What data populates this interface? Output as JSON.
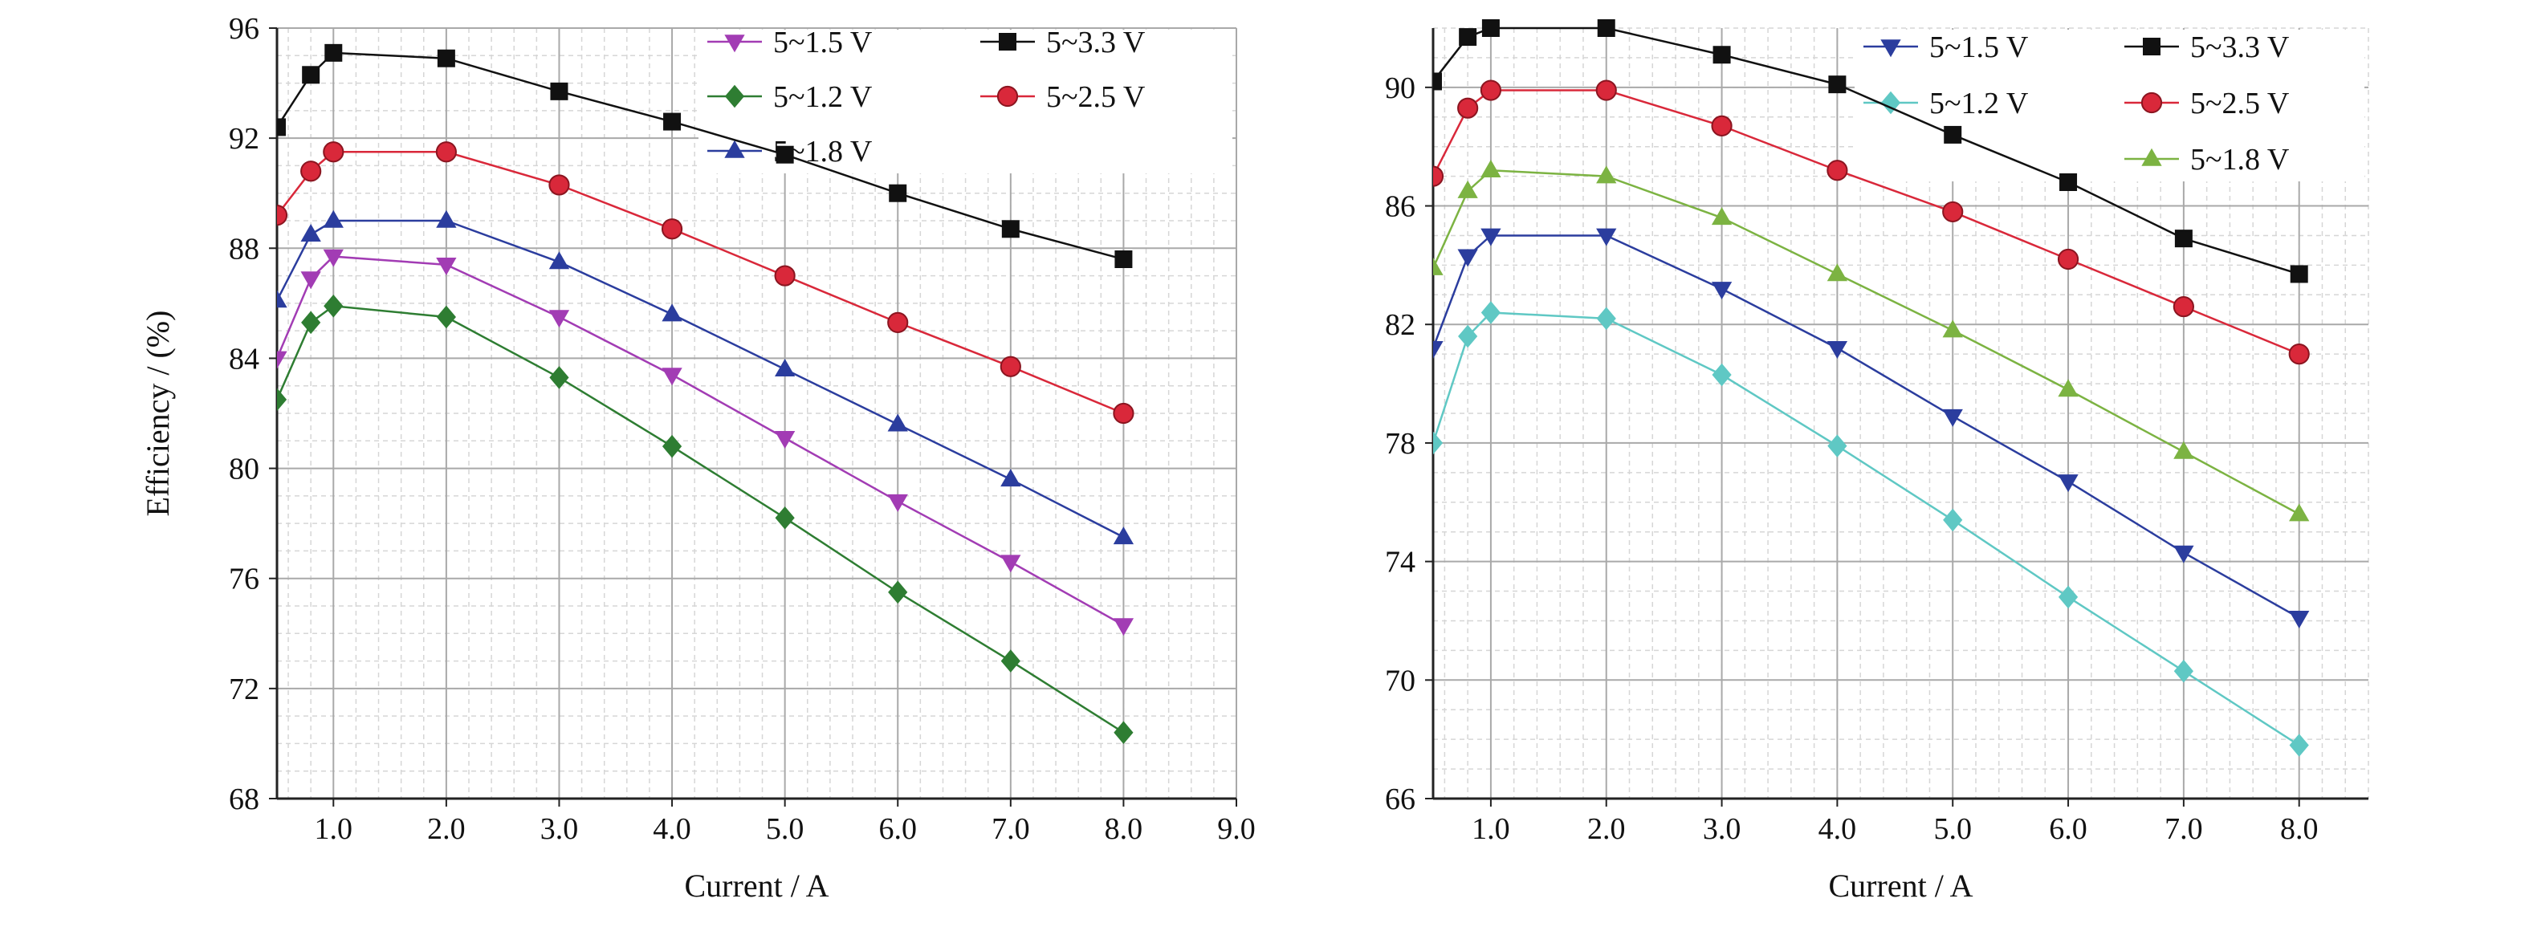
{
  "chart_data": [
    {
      "type": "line",
      "xlabel": "Current / A",
      "ylabel": "Efficiency / (%)",
      "xlim": [
        0.5,
        9.0
      ],
      "ylim": [
        68,
        96
      ],
      "x_ticks": [
        "1.0",
        "2.0",
        "3.0",
        "4.0",
        "5.0",
        "6.0",
        "7.0",
        "8.0",
        "9.0"
      ],
      "y_ticks": [
        "68",
        "72",
        "76",
        "80",
        "84",
        "88",
        "92",
        "96"
      ],
      "grid": true,
      "legend_position": "top-right",
      "series": [
        {
          "name": "5~1.5 V",
          "color": "#a23cb4",
          "marker": "triangle-down",
          "x": [
            0.5,
            0.8,
            1.0,
            2.0,
            3.0,
            4.0,
            5.0,
            6.0,
            7.0,
            8.0
          ],
          "values": [
            84.0,
            86.9,
            87.7,
            87.4,
            85.5,
            83.4,
            81.1,
            78.8,
            76.6,
            74.3
          ]
        },
        {
          "name": "5~3.3 V",
          "color": "#111111",
          "marker": "square",
          "x": [
            0.5,
            0.8,
            1.0,
            2.0,
            3.0,
            4.0,
            5.0,
            6.0,
            7.0,
            8.0
          ],
          "values": [
            92.4,
            94.3,
            95.1,
            94.9,
            93.7,
            92.6,
            91.4,
            90.0,
            88.7,
            87.6
          ]
        },
        {
          "name": "5~1.2 V",
          "color": "#2e7d32",
          "marker": "diamond",
          "x": [
            0.5,
            0.8,
            1.0,
            2.0,
            3.0,
            4.0,
            5.0,
            6.0,
            7.0,
            8.0
          ],
          "values": [
            82.5,
            85.3,
            85.9,
            85.5,
            83.3,
            80.8,
            78.2,
            75.5,
            73.0,
            70.4
          ]
        },
        {
          "name": "5~2.5 V",
          "color": "#d9283a",
          "marker": "circle",
          "x": [
            0.5,
            0.8,
            1.0,
            2.0,
            3.0,
            4.0,
            5.0,
            6.0,
            7.0,
            8.0
          ],
          "values": [
            89.2,
            90.8,
            91.5,
            91.5,
            90.3,
            88.7,
            87.0,
            85.3,
            83.7,
            82.0
          ]
        },
        {
          "name": "5~1.8 V",
          "color": "#2b3d9e",
          "marker": "triangle-up",
          "x": [
            0.5,
            0.8,
            1.0,
            2.0,
            3.0,
            4.0,
            5.0,
            6.0,
            7.0,
            8.0
          ],
          "values": [
            86.1,
            88.5,
            89.0,
            89.0,
            87.5,
            85.6,
            83.6,
            81.6,
            79.6,
            77.5
          ]
        }
      ]
    },
    {
      "type": "line",
      "xlabel": "Current / A",
      "ylabel": "",
      "xlim": [
        0.5,
        8.6
      ],
      "ylim": [
        66,
        92
      ],
      "x_ticks": [
        "1.0",
        "2.0",
        "3.0",
        "4.0",
        "5.0",
        "6.0",
        "7.0",
        "8.0"
      ],
      "y_ticks": [
        "66",
        "70",
        "74",
        "78",
        "82",
        "86",
        "90"
      ],
      "grid": true,
      "legend_position": "top-right",
      "series": [
        {
          "name": "5~1.5 V",
          "color": "#2b3d9e",
          "marker": "triangle-down",
          "x": [
            0.5,
            0.8,
            1.0,
            2.0,
            3.0,
            4.0,
            5.0,
            6.0,
            7.0,
            8.0
          ],
          "values": [
            81.2,
            84.3,
            85.0,
            85.0,
            83.2,
            81.2,
            78.9,
            76.7,
            74.3,
            72.1
          ]
        },
        {
          "name": "5~3.3 V",
          "color": "#111111",
          "marker": "square",
          "x": [
            0.5,
            0.8,
            1.0,
            2.0,
            3.0,
            4.0,
            5.0,
            6.0,
            7.0,
            8.0
          ],
          "values": [
            90.2,
            91.7,
            92.0,
            92.0,
            91.1,
            90.1,
            88.4,
            86.8,
            84.9,
            83.7
          ]
        },
        {
          "name": "5~1.2 V",
          "color": "#5fc8c4",
          "marker": "diamond",
          "x": [
            0.5,
            0.8,
            1.0,
            2.0,
            3.0,
            4.0,
            5.0,
            6.0,
            7.0,
            8.0
          ],
          "values": [
            78.0,
            81.6,
            82.4,
            82.2,
            80.3,
            77.9,
            75.4,
            72.8,
            70.3,
            67.8
          ]
        },
        {
          "name": "5~2.5 V",
          "color": "#d9283a",
          "marker": "circle",
          "x": [
            0.5,
            0.8,
            1.0,
            2.0,
            3.0,
            4.0,
            5.0,
            6.0,
            7.0,
            8.0
          ],
          "values": [
            87.0,
            89.3,
            89.9,
            89.9,
            88.7,
            87.2,
            85.8,
            84.2,
            82.6,
            81.0
          ]
        },
        {
          "name": "5~1.8 V",
          "color": "#7cb342",
          "marker": "triangle-up",
          "x": [
            0.5,
            0.8,
            1.0,
            2.0,
            3.0,
            4.0,
            5.0,
            6.0,
            7.0,
            8.0
          ],
          "values": [
            83.9,
            86.5,
            87.2,
            87.0,
            85.6,
            83.7,
            81.8,
            79.8,
            77.7,
            75.6
          ]
        }
      ]
    }
  ]
}
